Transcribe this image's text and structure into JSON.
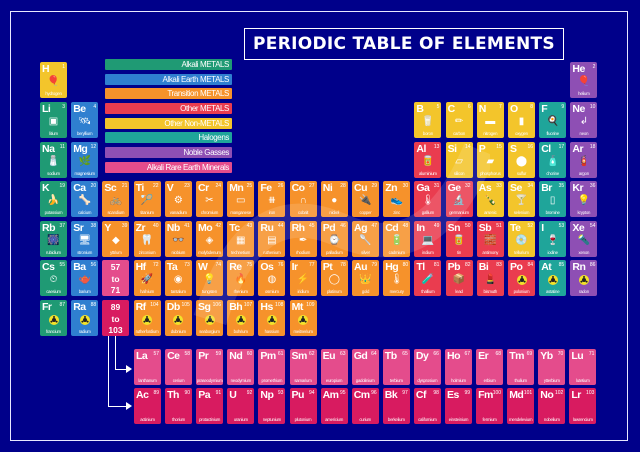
{
  "title": "PERIODIC TABLE OF ELEMENTS",
  "colors": {
    "background": "#00008a",
    "alkali": "#1f9a74",
    "alkaline_earth": "#2f7fd0",
    "transition": "#f6922b",
    "other_metal": "#ea3c4f",
    "nonmetal": "#f3c52b",
    "halogen": "#1fa59a",
    "noble": "#8e4fb4",
    "lanthanide": "#e44c8c",
    "actinide": "#d81b60",
    "hydrogen": "#f3c52b"
  },
  "legend": [
    {
      "label": "Alkali METALS",
      "color": "#1f9a74"
    },
    {
      "label": "Alkali Earth METALS",
      "color": "#2f7fd0"
    },
    {
      "label": "Transition METALS",
      "color": "#f6922b"
    },
    {
      "label": "Other METALS",
      "color": "#ea3c4f"
    },
    {
      "label": "Other Non-METALS",
      "color": "#f3c52b"
    },
    {
      "label": "Halogens",
      "color": "#1fa59a"
    },
    {
      "label": "Noble Gasses",
      "color": "#8e4fb4"
    },
    {
      "label": "Alkali Rare Earth Minerals",
      "color": "#e44c8c"
    }
  ],
  "placeholders": [
    {
      "text": "57\nto\n71",
      "lines": [
        "57",
        "to",
        "71"
      ],
      "color": "#e44c8c"
    },
    {
      "text": "89\nto\n103",
      "lines": [
        "89",
        "to",
        "103"
      ],
      "color": "#d81b60"
    }
  ],
  "elements": [
    {
      "sym": "H",
      "num": "1",
      "name": "hydrogen",
      "col": 1,
      "row": 1,
      "cat": "hydrogen",
      "icon": "blimp-icon",
      "glyph": "🎈"
    },
    {
      "sym": "He",
      "num": "2",
      "name": "helium",
      "col": 18,
      "row": 1,
      "cat": "noble",
      "icon": "balloon-icon",
      "glyph": "🎈"
    },
    {
      "sym": "Li",
      "num": "3",
      "name": "litium",
      "col": 1,
      "row": 2,
      "cat": "alkali",
      "icon": "battery-icon",
      "glyph": "▣"
    },
    {
      "sym": "Be",
      "num": "4",
      "name": "beryllium",
      "col": 2,
      "row": 2,
      "cat": "alkaline_earth",
      "icon": "satellite-icon",
      "glyph": "🛰"
    },
    {
      "sym": "B",
      "num": "5",
      "name": "boron",
      "col": 13,
      "row": 2,
      "cat": "nonmetal",
      "icon": "measuring-cup-icon",
      "glyph": "🥛"
    },
    {
      "sym": "C",
      "num": "6",
      "name": "carbon",
      "col": 14,
      "row": 2,
      "cat": "nonmetal",
      "icon": "pencil-icon",
      "glyph": "✏"
    },
    {
      "sym": "N",
      "num": "7",
      "name": "nitrogen",
      "col": 15,
      "row": 2,
      "cat": "nonmetal",
      "icon": "sausage-icon",
      "glyph": "▬"
    },
    {
      "sym": "O",
      "num": "8",
      "name": "oxygen",
      "col": 16,
      "row": 2,
      "cat": "nonmetal",
      "icon": "oxygen-tank-icon",
      "glyph": "▮"
    },
    {
      "sym": "F",
      "num": "9",
      "name": "fluorine",
      "col": 17,
      "row": 2,
      "cat": "halogen",
      "icon": "frying-pan-icon",
      "glyph": "🍳"
    },
    {
      "sym": "Ne",
      "num": "10",
      "name": "neon",
      "col": 18,
      "row": 2,
      "cat": "noble",
      "icon": "neon-sign-icon",
      "glyph": "↲"
    },
    {
      "sym": "Na",
      "num": "11",
      "name": "sodium",
      "col": 1,
      "row": 3,
      "cat": "alkali",
      "icon": "salt-shaker-icon",
      "glyph": "🧂"
    },
    {
      "sym": "Mg",
      "num": "12",
      "name": "magnesium",
      "col": 2,
      "row": 3,
      "cat": "alkaline_earth",
      "icon": "leaf-icon",
      "glyph": "🌿"
    },
    {
      "sym": "Al",
      "num": "13",
      "name": "aluminium",
      "col": 13,
      "row": 3,
      "cat": "other_metal",
      "icon": "can-icon",
      "glyph": "🥫"
    },
    {
      "sym": "Si",
      "num": "14",
      "name": "silicon",
      "col": 14,
      "row": 3,
      "cat": "nonmetal",
      "icon": "chip-icon",
      "glyph": "▱"
    },
    {
      "sym": "P",
      "num": "15",
      "name": "phosphorus",
      "col": 15,
      "row": 3,
      "cat": "nonmetal",
      "icon": "matchbox-icon",
      "glyph": "▰"
    },
    {
      "sym": "S",
      "num": "16",
      "name": "sulfur",
      "col": 16,
      "row": 3,
      "cat": "nonmetal",
      "icon": "tire-icon",
      "glyph": "⬤"
    },
    {
      "sym": "Cl",
      "num": "17",
      "name": "chorine",
      "col": 17,
      "row": 3,
      "cat": "halogen",
      "icon": "spray-bottle-icon",
      "glyph": "🧴"
    },
    {
      "sym": "Ar",
      "num": "18",
      "name": "argon",
      "col": 18,
      "row": 3,
      "cat": "noble",
      "icon": "extinguisher-icon",
      "glyph": "🧯"
    },
    {
      "sym": "K",
      "num": "19",
      "name": "potassium",
      "col": 1,
      "row": 4,
      "cat": "alkali",
      "icon": "banana-icon",
      "glyph": "🍌"
    },
    {
      "sym": "Ca",
      "num": "20",
      "name": "calcium",
      "col": 2,
      "row": 4,
      "cat": "alkaline_earth",
      "icon": "bone-icon",
      "glyph": "🦴"
    },
    {
      "sym": "Sc",
      "num": "21",
      "name": "scandium",
      "col": 3,
      "row": 4,
      "cat": "transition",
      "icon": "bicycle-icon",
      "glyph": "🚲"
    },
    {
      "sym": "Ti",
      "num": "22",
      "name": "titanium",
      "col": 4,
      "row": 4,
      "cat": "transition",
      "icon": "racket-icon",
      "glyph": "🏸"
    },
    {
      "sym": "V",
      "num": "23",
      "name": "vanadium",
      "col": 5,
      "row": 4,
      "cat": "transition",
      "icon": "gears-icon",
      "glyph": "⚙"
    },
    {
      "sym": "Cr",
      "num": "24",
      "name": "chromium",
      "col": 6,
      "row": 4,
      "cat": "transition",
      "icon": "tools-icon",
      "glyph": "✂"
    },
    {
      "sym": "Mn",
      "num": "25",
      "name": "manganese",
      "col": 7,
      "row": 4,
      "cat": "transition",
      "icon": "steel-beam-icon",
      "glyph": "▭"
    },
    {
      "sym": "Fe",
      "num": "26",
      "name": "iron",
      "col": 8,
      "row": 4,
      "cat": "transition",
      "icon": "fence-icon",
      "glyph": "⧻"
    },
    {
      "sym": "Co",
      "num": "27",
      "name": "cobalt",
      "col": 9,
      "row": 4,
      "cat": "transition",
      "icon": "magnet-icon",
      "glyph": "∩"
    },
    {
      "sym": "Ni",
      "num": "28",
      "name": "nickel",
      "col": 10,
      "row": 4,
      "cat": "transition",
      "icon": "coin-icon",
      "glyph": "●"
    },
    {
      "sym": "Cu",
      "num": "29",
      "name": "copper",
      "col": 11,
      "row": 4,
      "cat": "transition",
      "icon": "plug-icon",
      "glyph": "🔌"
    },
    {
      "sym": "Zn",
      "num": "30",
      "name": "zinc",
      "col": 12,
      "row": 4,
      "cat": "transition",
      "icon": "shoe-icon",
      "glyph": "👟"
    },
    {
      "sym": "Ga",
      "num": "31",
      "name": "gallium",
      "col": 13,
      "row": 4,
      "cat": "other_metal",
      "icon": "thermometer-icon",
      "glyph": "🌡"
    },
    {
      "sym": "Ge",
      "num": "32",
      "name": "germanium",
      "col": 14,
      "row": 4,
      "cat": "other_metal",
      "icon": "microscope-icon",
      "glyph": "🔬"
    },
    {
      "sym": "As",
      "num": "33",
      "name": "arsenic",
      "col": 15,
      "row": 4,
      "cat": "nonmetal",
      "icon": "bottle-icon",
      "glyph": "🍾"
    },
    {
      "sym": "Se",
      "num": "34",
      "name": "selenium",
      "col": 16,
      "row": 4,
      "cat": "nonmetal",
      "icon": "cocktail-icon",
      "glyph": "🍸"
    },
    {
      "sym": "Br",
      "num": "35",
      "name": "bromine",
      "col": 17,
      "row": 4,
      "cat": "halogen",
      "icon": "jar-icon",
      "glyph": "▯"
    },
    {
      "sym": "Kr",
      "num": "36",
      "name": "krypton",
      "col": 18,
      "row": 4,
      "cat": "noble",
      "icon": "lamp-icon",
      "glyph": "💡"
    },
    {
      "sym": "Rb",
      "num": "37",
      "name": "rubidium",
      "col": 1,
      "row": 5,
      "cat": "alkali",
      "icon": "firework-icon",
      "glyph": "🎆"
    },
    {
      "sym": "Sr",
      "num": "38",
      "name": "stronium",
      "col": 2,
      "row": 5,
      "cat": "alkaline_earth",
      "icon": "monitor-icon",
      "glyph": "🖥"
    },
    {
      "sym": "Y",
      "num": "39",
      "name": "yttrium",
      "col": 3,
      "row": 5,
      "cat": "transition",
      "icon": "crystal-icon",
      "glyph": "◆"
    },
    {
      "sym": "Zr",
      "num": "40",
      "name": "zirconium",
      "col": 4,
      "row": 5,
      "cat": "transition",
      "icon": "tooth-icon",
      "glyph": "🦷"
    },
    {
      "sym": "Nb",
      "num": "41",
      "name": "niobium",
      "col": 5,
      "row": 5,
      "cat": "transition",
      "icon": "glasses-icon",
      "glyph": "👓"
    },
    {
      "sym": "Mo",
      "num": "42",
      "name": "molybdenum",
      "col": 6,
      "row": 5,
      "cat": "transition",
      "icon": "tag-icon",
      "glyph": "◈"
    },
    {
      "sym": "Tc",
      "num": "43",
      "name": "technetium",
      "col": 7,
      "row": 5,
      "cat": "transition",
      "icon": "xray-icon",
      "glyph": "▦"
    },
    {
      "sym": "Ru",
      "num": "44",
      "name": "ruthenium",
      "col": 8,
      "row": 5,
      "cat": "transition",
      "icon": "circuit-board-icon",
      "glyph": "▤"
    },
    {
      "sym": "Rh",
      "num": "45",
      "name": "rhodium",
      "col": 9,
      "row": 5,
      "cat": "transition",
      "icon": "pen-nib-icon",
      "glyph": "✒"
    },
    {
      "sym": "Pd",
      "num": "46",
      "name": "palladium",
      "col": 10,
      "row": 5,
      "cat": "transition",
      "icon": "watch-icon",
      "glyph": "⌚"
    },
    {
      "sym": "Ag",
      "num": "47",
      "name": "silver",
      "col": 11,
      "row": 5,
      "cat": "transition",
      "icon": "spoon-icon",
      "glyph": "🥄"
    },
    {
      "sym": "Cd",
      "num": "48",
      "name": "cadmium",
      "col": 12,
      "row": 5,
      "cat": "transition",
      "icon": "battery-icon",
      "glyph": "🔋"
    },
    {
      "sym": "In",
      "num": "49",
      "name": "indium",
      "col": 13,
      "row": 5,
      "cat": "other_metal",
      "icon": "laptop-icon",
      "glyph": "💻"
    },
    {
      "sym": "Sn",
      "num": "50",
      "name": "tin",
      "col": 14,
      "row": 5,
      "cat": "other_metal",
      "icon": "tin-can-icon",
      "glyph": "🥫"
    },
    {
      "sym": "Sb",
      "num": "51",
      "name": "antimony",
      "col": 15,
      "row": 5,
      "cat": "other_metal",
      "icon": "brick-icon",
      "glyph": "🧱"
    },
    {
      "sym": "Te",
      "num": "52",
      "name": "tellurium",
      "col": 16,
      "row": 5,
      "cat": "nonmetal",
      "icon": "disc-icon",
      "glyph": "💿"
    },
    {
      "sym": "I",
      "num": "53",
      "name": "iodine",
      "col": 17,
      "row": 5,
      "cat": "halogen",
      "icon": "medicine-bottle-icon",
      "glyph": "🍷"
    },
    {
      "sym": "Xe",
      "num": "54",
      "name": "xenon",
      "col": 18,
      "row": 5,
      "cat": "noble",
      "icon": "flashlight-icon",
      "glyph": "🔦"
    },
    {
      "sym": "Cs",
      "num": "55",
      "name": "caesium",
      "col": 1,
      "row": 6,
      "cat": "alkali",
      "icon": "clock-icon",
      "glyph": "⏲"
    },
    {
      "sym": "Ba",
      "num": "56",
      "name": "barium",
      "col": 2,
      "row": 6,
      "cat": "alkaline_earth",
      "icon": "teapot-icon",
      "glyph": "🫖"
    },
    {
      "sym": "Hf",
      "num": "72",
      "name": "hafnium",
      "col": 4,
      "row": 6,
      "cat": "transition",
      "icon": "rocket-icon",
      "glyph": "🚀"
    },
    {
      "sym": "Ta",
      "num": "73",
      "name": "tantalum",
      "col": 5,
      "row": 6,
      "cat": "transition",
      "icon": "camera-lens-icon",
      "glyph": "◉"
    },
    {
      "sym": "W",
      "num": "74",
      "name": "tungsten",
      "col": 6,
      "row": 6,
      "cat": "transition",
      "icon": "lightbulb-icon",
      "glyph": "💡"
    },
    {
      "sym": "Re",
      "num": "75",
      "name": "rhenium",
      "col": 7,
      "row": 6,
      "cat": "transition",
      "icon": "fire-icon",
      "glyph": "🔥"
    },
    {
      "sym": "Os",
      "num": "76",
      "name": "osmium",
      "col": 8,
      "row": 6,
      "cat": "transition",
      "icon": "fingerprint-icon",
      "glyph": "◍"
    },
    {
      "sym": "Ir",
      "num": "77",
      "name": "iridium",
      "col": 9,
      "row": 6,
      "cat": "transition",
      "icon": "spark-plug-icon",
      "glyph": "⚡"
    },
    {
      "sym": "Pt",
      "num": "78",
      "name": "platinum",
      "col": 10,
      "row": 6,
      "cat": "transition",
      "icon": "ring-icon",
      "glyph": "◯"
    },
    {
      "sym": "Au",
      "num": "79",
      "name": "gold",
      "col": 11,
      "row": 6,
      "cat": "transition",
      "icon": "crown-icon",
      "glyph": "👑"
    },
    {
      "sym": "Hg",
      "num": "80",
      "name": "mercury",
      "col": 12,
      "row": 6,
      "cat": "transition",
      "icon": "thermometer-icon",
      "glyph": "🌡"
    },
    {
      "sym": "Tl",
      "num": "81",
      "name": "thallium",
      "col": 13,
      "row": 6,
      "cat": "other_metal",
      "icon": "vial-icon",
      "glyph": "🧪"
    },
    {
      "sym": "Pb",
      "num": "82",
      "name": "lead",
      "col": 14,
      "row": 6,
      "cat": "other_metal",
      "icon": "box-icon",
      "glyph": "📦"
    },
    {
      "sym": "Bi",
      "num": "83",
      "name": "bismuth",
      "col": 15,
      "row": 6,
      "cat": "other_metal",
      "icon": "lipstick-icon",
      "glyph": "💄"
    },
    {
      "sym": "Po",
      "num": "84",
      "name": "polonium",
      "col": 16,
      "row": 6,
      "cat": "other_metal",
      "icon": "radiation-icon",
      "glyph": "rad"
    },
    {
      "sym": "At",
      "num": "85",
      "name": "astatine",
      "col": 17,
      "row": 6,
      "cat": "halogen",
      "icon": "radiation-icon",
      "glyph": "rad"
    },
    {
      "sym": "Rn",
      "num": "86",
      "name": "radon",
      "col": 18,
      "row": 6,
      "cat": "noble",
      "icon": "radiation-icon",
      "glyph": "rad"
    },
    {
      "sym": "Fr",
      "num": "87",
      "name": "francium",
      "col": 1,
      "row": 7,
      "cat": "alkali",
      "icon": "radiation-icon",
      "glyph": "rad"
    },
    {
      "sym": "Ra",
      "num": "88",
      "name": "radium",
      "col": 2,
      "row": 7,
      "cat": "alkaline_earth",
      "icon": "radiation-icon",
      "glyph": "rad"
    },
    {
      "sym": "Rf",
      "num": "104",
      "name": "rutherfordium",
      "col": 4,
      "row": 7,
      "cat": "transition",
      "icon": "radiation-icon",
      "glyph": "rad"
    },
    {
      "sym": "Db",
      "num": "105",
      "name": "dubnium",
      "col": 5,
      "row": 7,
      "cat": "transition",
      "icon": "radiation-icon",
      "glyph": "rad"
    },
    {
      "sym": "Sg",
      "num": "106",
      "name": "seaborgium",
      "col": 6,
      "row": 7,
      "cat": "transition",
      "icon": "radiation-icon",
      "glyph": "rad"
    },
    {
      "sym": "Bh",
      "num": "107",
      "name": "bohrium",
      "col": 7,
      "row": 7,
      "cat": "transition",
      "icon": "radiation-icon",
      "glyph": "rad"
    },
    {
      "sym": "Hs",
      "num": "108",
      "name": "hassium",
      "col": 8,
      "row": 7,
      "cat": "transition",
      "icon": "radiation-icon",
      "glyph": "rad"
    },
    {
      "sym": "Mt",
      "num": "109",
      "name": "meitnerium",
      "col": 9,
      "row": 7,
      "cat": "transition",
      "icon": "radiation-icon",
      "glyph": "rad"
    }
  ],
  "lanthanides": [
    {
      "sym": "La",
      "num": "57",
      "name": "lanthanum"
    },
    {
      "sym": "Ce",
      "num": "58",
      "name": "cerium"
    },
    {
      "sym": "Pr",
      "num": "59",
      "name": "praseodymium"
    },
    {
      "sym": "Nd",
      "num": "60",
      "name": "neodymium"
    },
    {
      "sym": "Pm",
      "num": "61",
      "name": "promethium"
    },
    {
      "sym": "Sm",
      "num": "62",
      "name": "samarium"
    },
    {
      "sym": "Eu",
      "num": "63",
      "name": "europium"
    },
    {
      "sym": "Gd",
      "num": "64",
      "name": "gadolinium"
    },
    {
      "sym": "Tb",
      "num": "65",
      "name": "terbium"
    },
    {
      "sym": "Dy",
      "num": "66",
      "name": "dysprosium"
    },
    {
      "sym": "Ho",
      "num": "67",
      "name": "holmium"
    },
    {
      "sym": "Er",
      "num": "68",
      "name": "erbium"
    },
    {
      "sym": "Tm",
      "num": "69",
      "name": "thulium"
    },
    {
      "sym": "Yb",
      "num": "70",
      "name": "ytterbium"
    },
    {
      "sym": "Lu",
      "num": "71",
      "name": "lutetium"
    }
  ],
  "actinides": [
    {
      "sym": "Ac",
      "num": "89",
      "name": "actinium"
    },
    {
      "sym": "Th",
      "num": "90",
      "name": "thorium"
    },
    {
      "sym": "Pa",
      "num": "91",
      "name": "protactinium"
    },
    {
      "sym": "U",
      "num": "92",
      "name": "uranium"
    },
    {
      "sym": "Np",
      "num": "93",
      "name": "neptunium"
    },
    {
      "sym": "Pu",
      "num": "94",
      "name": "plutonium"
    },
    {
      "sym": "Am",
      "num": "95",
      "name": "americium"
    },
    {
      "sym": "Cm",
      "num": "96",
      "name": "curium"
    },
    {
      "sym": "Bk",
      "num": "97",
      "name": "berkelium"
    },
    {
      "sym": "Cf",
      "num": "98",
      "name": "californium"
    },
    {
      "sym": "Es",
      "num": "99",
      "name": "einsteinium"
    },
    {
      "sym": "Fm",
      "num": "100",
      "name": "fermium"
    },
    {
      "sym": "Md",
      "num": "101",
      "name": "mendelevium"
    },
    {
      "sym": "No",
      "num": "102",
      "name": "nobelium"
    },
    {
      "sym": "Lr",
      "num": "103",
      "name": "lawrencium"
    }
  ]
}
